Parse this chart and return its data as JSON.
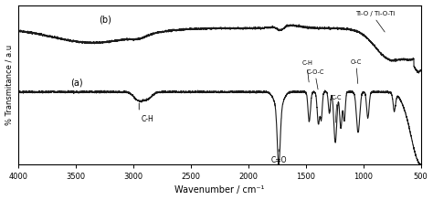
{
  "title": "",
  "xlabel": "Wavenumber / cm⁻¹",
  "ylabel": "% Transmitance / a.u",
  "xlim": [
    4000,
    500
  ],
  "background_color": "#ffffff",
  "label_a": "(a)",
  "label_b": "(b)",
  "line_color": "#1a1a1a",
  "tick_labels": [
    "4000",
    "3500",
    "3000",
    "2500",
    "2000",
    "1500",
    "1000",
    "500"
  ],
  "tick_positions": [
    4000,
    3500,
    3000,
    2500,
    2000,
    1500,
    1000,
    500
  ]
}
